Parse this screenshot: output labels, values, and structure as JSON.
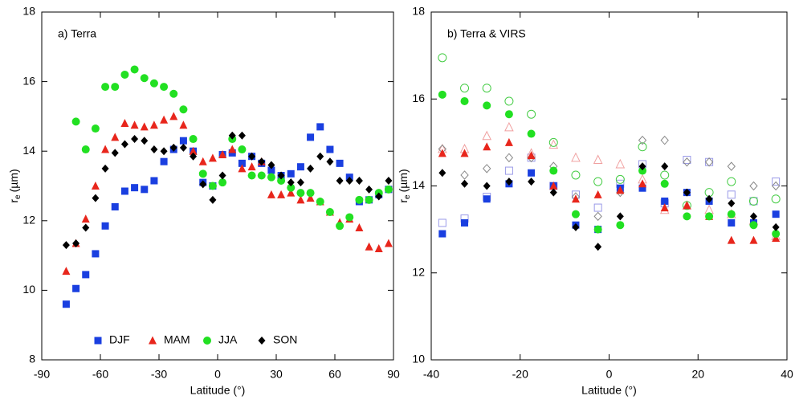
{
  "chart_data": [
    {
      "type": "scatter",
      "title": "a) Terra",
      "xlabel": "Latitude (°)",
      "ylabel": "r",
      "ylabel_sub": "e",
      "ylabel_unit": "(µm)",
      "x": [
        -77.5,
        -72.5,
        -67.5,
        -62.5,
        -57.5,
        -52.5,
        -47.5,
        -42.5,
        -37.5,
        -32.5,
        -27.5,
        -22.5,
        -17.5,
        -12.5,
        -7.5,
        -2.5,
        2.5,
        7.5,
        12.5,
        17.5,
        22.5,
        27.5,
        32.5,
        37.5,
        42.5,
        47.5,
        52.5,
        57.5,
        62.5,
        67.5,
        72.5,
        77.5,
        82.5,
        87.5
      ],
      "xlim": [
        -90,
        90
      ],
      "xticks": [
        -90,
        -60,
        -30,
        0,
        30,
        60,
        90
      ],
      "ylim": [
        8,
        18
      ],
      "yticks": [
        8,
        10,
        12,
        14,
        16,
        18
      ],
      "legend": "lower left",
      "series": [
        {
          "name": "DJF",
          "color": "#1a3fe0",
          "marker": "square",
          "filled": true,
          "values": [
            9.6,
            10.05,
            10.45,
            11.05,
            11.85,
            12.4,
            12.85,
            12.95,
            12.9,
            13.15,
            13.7,
            14.05,
            14.3,
            14.0,
            13.1,
            13.0,
            13.9,
            13.95,
            13.65,
            13.85,
            13.65,
            13.45,
            13.3,
            13.35,
            13.55,
            14.4,
            14.7,
            14.05,
            13.65,
            13.25,
            12.55,
            12.6,
            12.75,
            12.9
          ]
        },
        {
          "name": "MAM",
          "color": "#e8261c",
          "marker": "triangle",
          "filled": true,
          "values": [
            10.55,
            11.35,
            12.05,
            13.0,
            14.05,
            14.4,
            14.8,
            14.75,
            14.7,
            14.75,
            14.9,
            15.0,
            14.75,
            14.0,
            13.7,
            13.8,
            13.9,
            14.05,
            13.5,
            13.55,
            13.7,
            12.75,
            12.75,
            12.8,
            12.6,
            12.65,
            12.55,
            12.25,
            11.95,
            12.05,
            11.8,
            11.25,
            11.2,
            11.35
          ]
        },
        {
          "name": "JJA",
          "color": "#22e022",
          "marker": "circle",
          "filled": true,
          "values": [
            null,
            14.85,
            14.05,
            14.65,
            15.85,
            15.85,
            16.2,
            16.35,
            16.1,
            15.95,
            15.85,
            15.65,
            15.2,
            14.35,
            13.35,
            13.0,
            13.1,
            14.35,
            14.05,
            13.3,
            13.3,
            13.25,
            13.15,
            12.95,
            12.8,
            12.8,
            12.55,
            12.25,
            11.85,
            12.1,
            12.6,
            12.6,
            12.8,
            12.9
          ]
        },
        {
          "name": "SON",
          "color": "#000000",
          "marker": "diamond",
          "filled": true,
          "values": [
            11.3,
            11.35,
            11.8,
            12.65,
            13.5,
            13.95,
            14.2,
            14.35,
            14.3,
            14.05,
            14.0,
            14.1,
            14.1,
            13.85,
            13.05,
            12.6,
            13.3,
            14.45,
            14.45,
            13.85,
            13.7,
            13.6,
            13.3,
            13.1,
            13.1,
            13.5,
            13.85,
            13.7,
            13.15,
            13.15,
            13.15,
            12.9,
            12.7,
            13.15
          ]
        }
      ]
    },
    {
      "type": "scatter",
      "title": "b) Terra & VIRS",
      "xlabel": "Latitude (°)",
      "ylabel": "r",
      "ylabel_sub": "e",
      "ylabel_unit": "(µm)",
      "x": [
        -37.5,
        -32.5,
        -27.5,
        -22.5,
        -17.5,
        -12.5,
        -7.5,
        -2.5,
        2.5,
        7.5,
        12.5,
        17.5,
        22.5,
        27.5,
        32.5,
        37.5
      ],
      "xlim": [
        -40,
        40
      ],
      "xticks": [
        -40,
        -20,
        0,
        20,
        40
      ],
      "ylim": [
        10,
        18
      ],
      "yticks": [
        10,
        12,
        14,
        16,
        18
      ],
      "series": [
        {
          "color": "#9a9ae8",
          "marker": "square",
          "filled": false,
          "values": [
            13.15,
            13.25,
            13.75,
            14.35,
            14.65,
            14.0,
            13.8,
            13.5,
            14.05,
            14.5,
            13.6,
            14.6,
            14.55,
            13.8,
            13.65,
            14.1
          ]
        },
        {
          "color": "#f0a0a0",
          "marker": "triangle",
          "filled": false,
          "values": [
            14.85,
            14.85,
            15.15,
            15.35,
            14.75,
            14.95,
            14.65,
            14.6,
            14.5,
            14.15,
            13.45,
            13.55,
            13.45,
            13.35,
            13.2,
            12.85
          ]
        },
        {
          "color": "#44cc44",
          "marker": "circle",
          "filled": false,
          "values": [
            16.95,
            16.25,
            16.25,
            15.95,
            15.65,
            15.0,
            14.25,
            14.1,
            14.15,
            14.9,
            14.25,
            13.55,
            13.85,
            14.1,
            13.65,
            13.7
          ]
        },
        {
          "color": "#888888",
          "marker": "diamond",
          "filled": false,
          "values": [
            14.85,
            14.25,
            14.4,
            14.65,
            14.65,
            14.45,
            13.75,
            13.3,
            13.85,
            15.05,
            15.05,
            14.55,
            14.55,
            14.45,
            14.0,
            14.0
          ]
        },
        {
          "color": "#1a3fe0",
          "marker": "square",
          "filled": true,
          "values": [
            12.9,
            13.15,
            13.7,
            14.05,
            14.3,
            14.0,
            13.1,
            13.0,
            13.95,
            13.95,
            13.65,
            13.85,
            13.65,
            13.15,
            13.15,
            13.35
          ]
        },
        {
          "color": "#e8261c",
          "marker": "triangle",
          "filled": true,
          "values": [
            14.75,
            14.75,
            14.9,
            15.0,
            14.7,
            14.0,
            13.7,
            13.8,
            13.9,
            14.05,
            13.5,
            13.55,
            13.3,
            12.75,
            12.75,
            12.8
          ]
        },
        {
          "color": "#22e022",
          "marker": "circle",
          "filled": true,
          "values": [
            16.1,
            15.95,
            15.85,
            15.65,
            15.2,
            14.35,
            13.35,
            13.0,
            13.1,
            14.35,
            14.05,
            13.3,
            13.3,
            13.35,
            13.1,
            12.9
          ]
        },
        {
          "color": "#000000",
          "marker": "diamond",
          "filled": true,
          "values": [
            14.3,
            14.05,
            14.0,
            14.1,
            14.1,
            13.85,
            13.05,
            12.6,
            13.3,
            14.45,
            14.45,
            13.85,
            13.7,
            13.6,
            13.3,
            13.05
          ]
        }
      ]
    }
  ]
}
